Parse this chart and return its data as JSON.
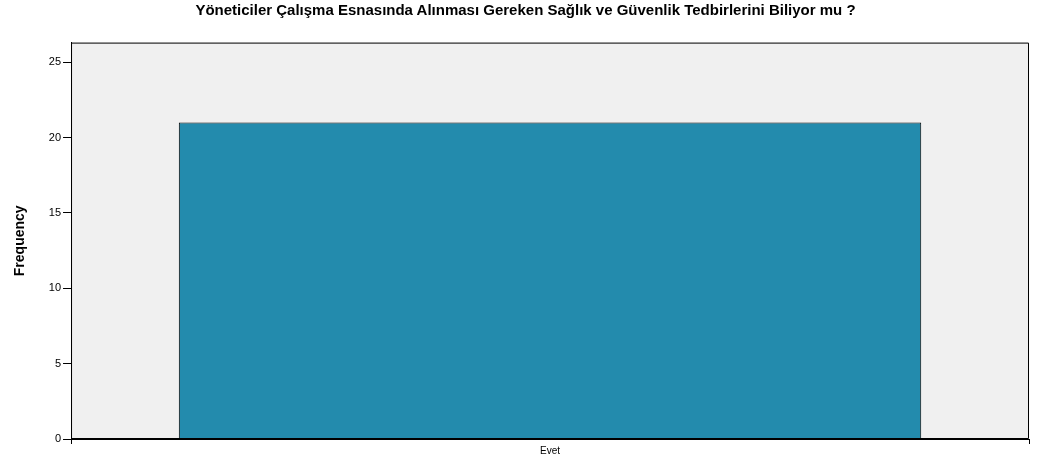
{
  "chart_data": {
    "type": "bar",
    "title": "Yöneticiler Çalışma Esnasında Alınması Gereken Sağlık ve Güvenlik Tedbirlerini Biliyor mu ?",
    "ylabel": "Frequency",
    "categories": [
      "Evet"
    ],
    "values": [
      21
    ],
    "color": "#238bad",
    "ylim": [
      0,
      26.3
    ],
    "yticks": [
      0,
      5,
      10,
      15,
      20,
      25
    ],
    "grid": false,
    "legend": false
  }
}
